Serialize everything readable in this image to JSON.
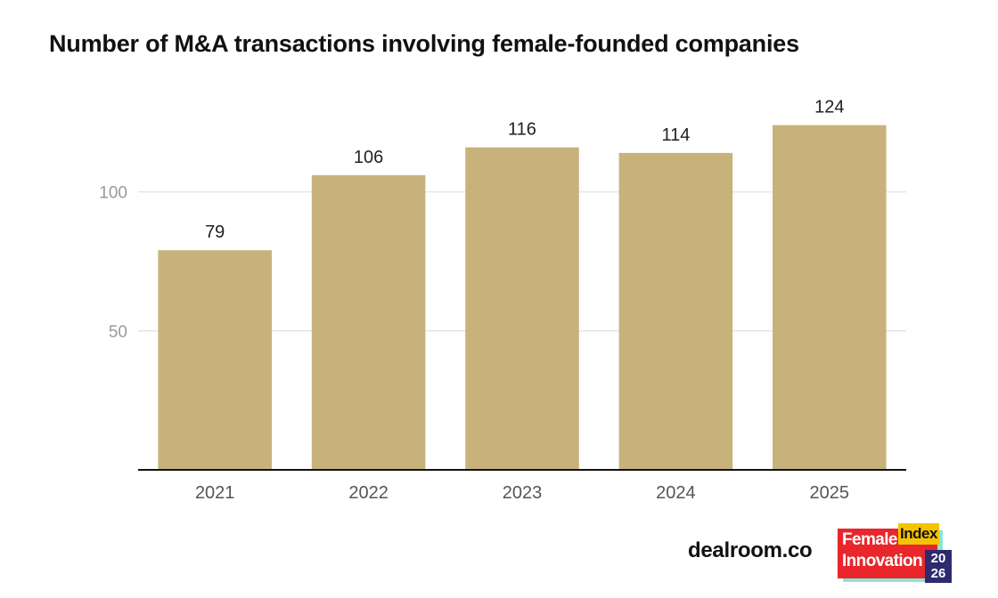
{
  "page": {
    "title": "Number of M&A transactions involving female-founded companies",
    "source": "dealroom.co"
  },
  "logo": {
    "line1": "Female",
    "line2": "Innovation",
    "badge": "Index",
    "year_top": "20",
    "year_bottom": "26",
    "colors": {
      "red": "#e8262c",
      "yellow": "#f5c400",
      "navy": "#2d2a6e",
      "teal": "#8fe3d6"
    }
  },
  "chart_data": {
    "type": "bar",
    "title": "Number of M&A transactions involving female-founded companies",
    "categories": [
      "2021",
      "2022",
      "2023",
      "2024",
      "2025"
    ],
    "values": [
      79,
      106,
      116,
      114,
      124
    ],
    "data_labels": [
      "79",
      "106",
      "116",
      "114",
      "124"
    ],
    "ylim": [
      0,
      137
    ],
    "yticks": [
      50,
      100
    ],
    "ytick_labels": [
      "50",
      "100"
    ],
    "xlabel": "",
    "ylabel": "",
    "grid": true,
    "legend": "none",
    "colors": {
      "bar": "#c8b27c",
      "grid": "#e6e6e6",
      "axis": "#111111",
      "tick_label": "#9a9a9a",
      "x_label": "#555555",
      "data_label": "#222222"
    }
  }
}
